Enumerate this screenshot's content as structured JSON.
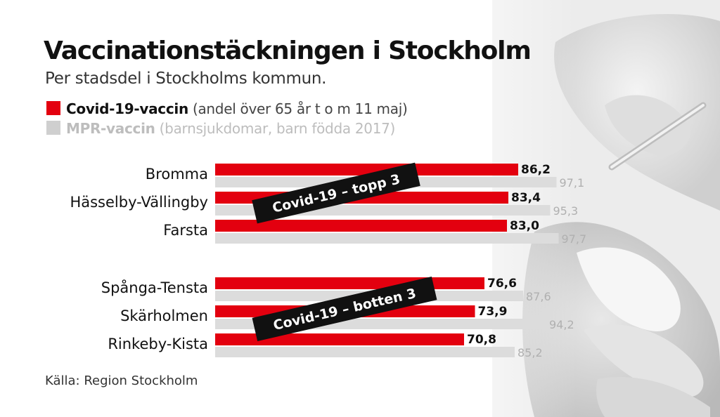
{
  "title": "Vaccinationstäckningen i Stockholm",
  "subtitle": "Per stadsdel i Stockholms kommun.",
  "legend": {
    "covid": {
      "name": "Covid-19-vaccin",
      "desc": "(andel över 65 år t o m 11 maj)"
    },
    "mpr": {
      "name": "MPR-vaccin",
      "desc": "(barnsjukdomar, barn födda 2017)"
    }
  },
  "source": "Källa: Region Stockholm",
  "colors": {
    "covid": "#e3000f",
    "mpr": "#dcdcdc",
    "badge": "#111111"
  },
  "chart_data": {
    "type": "bar",
    "orientation": "horizontal",
    "title": "Vaccinationstäckningen i Stockholm",
    "subtitle": "Per stadsdel i Stockholms kommun.",
    "groups": [
      {
        "label": "Covid-19 – topp 3",
        "categories": [
          "Bromma",
          "Hässelby-Vällingby",
          "Farsta"
        ],
        "series": [
          {
            "name": "Covid-19-vaccin",
            "values": [
              86.2,
              83.4,
              83.0
            ],
            "labels": [
              "86,2",
              "83,4",
              "83,0"
            ]
          },
          {
            "name": "MPR-vaccin",
            "values": [
              97.1,
              95.3,
              97.7
            ],
            "labels": [
              "97,1",
              "95,3",
              "97,7"
            ]
          }
        ]
      },
      {
        "label": "Covid-19 – botten 3",
        "categories": [
          "Spånga-Tensta",
          "Skärholmen",
          "Rinkeby-Kista"
        ],
        "series": [
          {
            "name": "Covid-19-vaccin",
            "values": [
              76.6,
              73.9,
              70.8
            ],
            "labels": [
              "76,6",
              "73,9",
              "70,8"
            ]
          },
          {
            "name": "MPR-vaccin",
            "values": [
              87.6,
              94.2,
              85.2
            ],
            "labels": [
              "87,6",
              "94,2",
              "85,2"
            ]
          }
        ]
      }
    ],
    "xlim": [
      0,
      100
    ],
    "grid": false,
    "legend": "top-left"
  }
}
